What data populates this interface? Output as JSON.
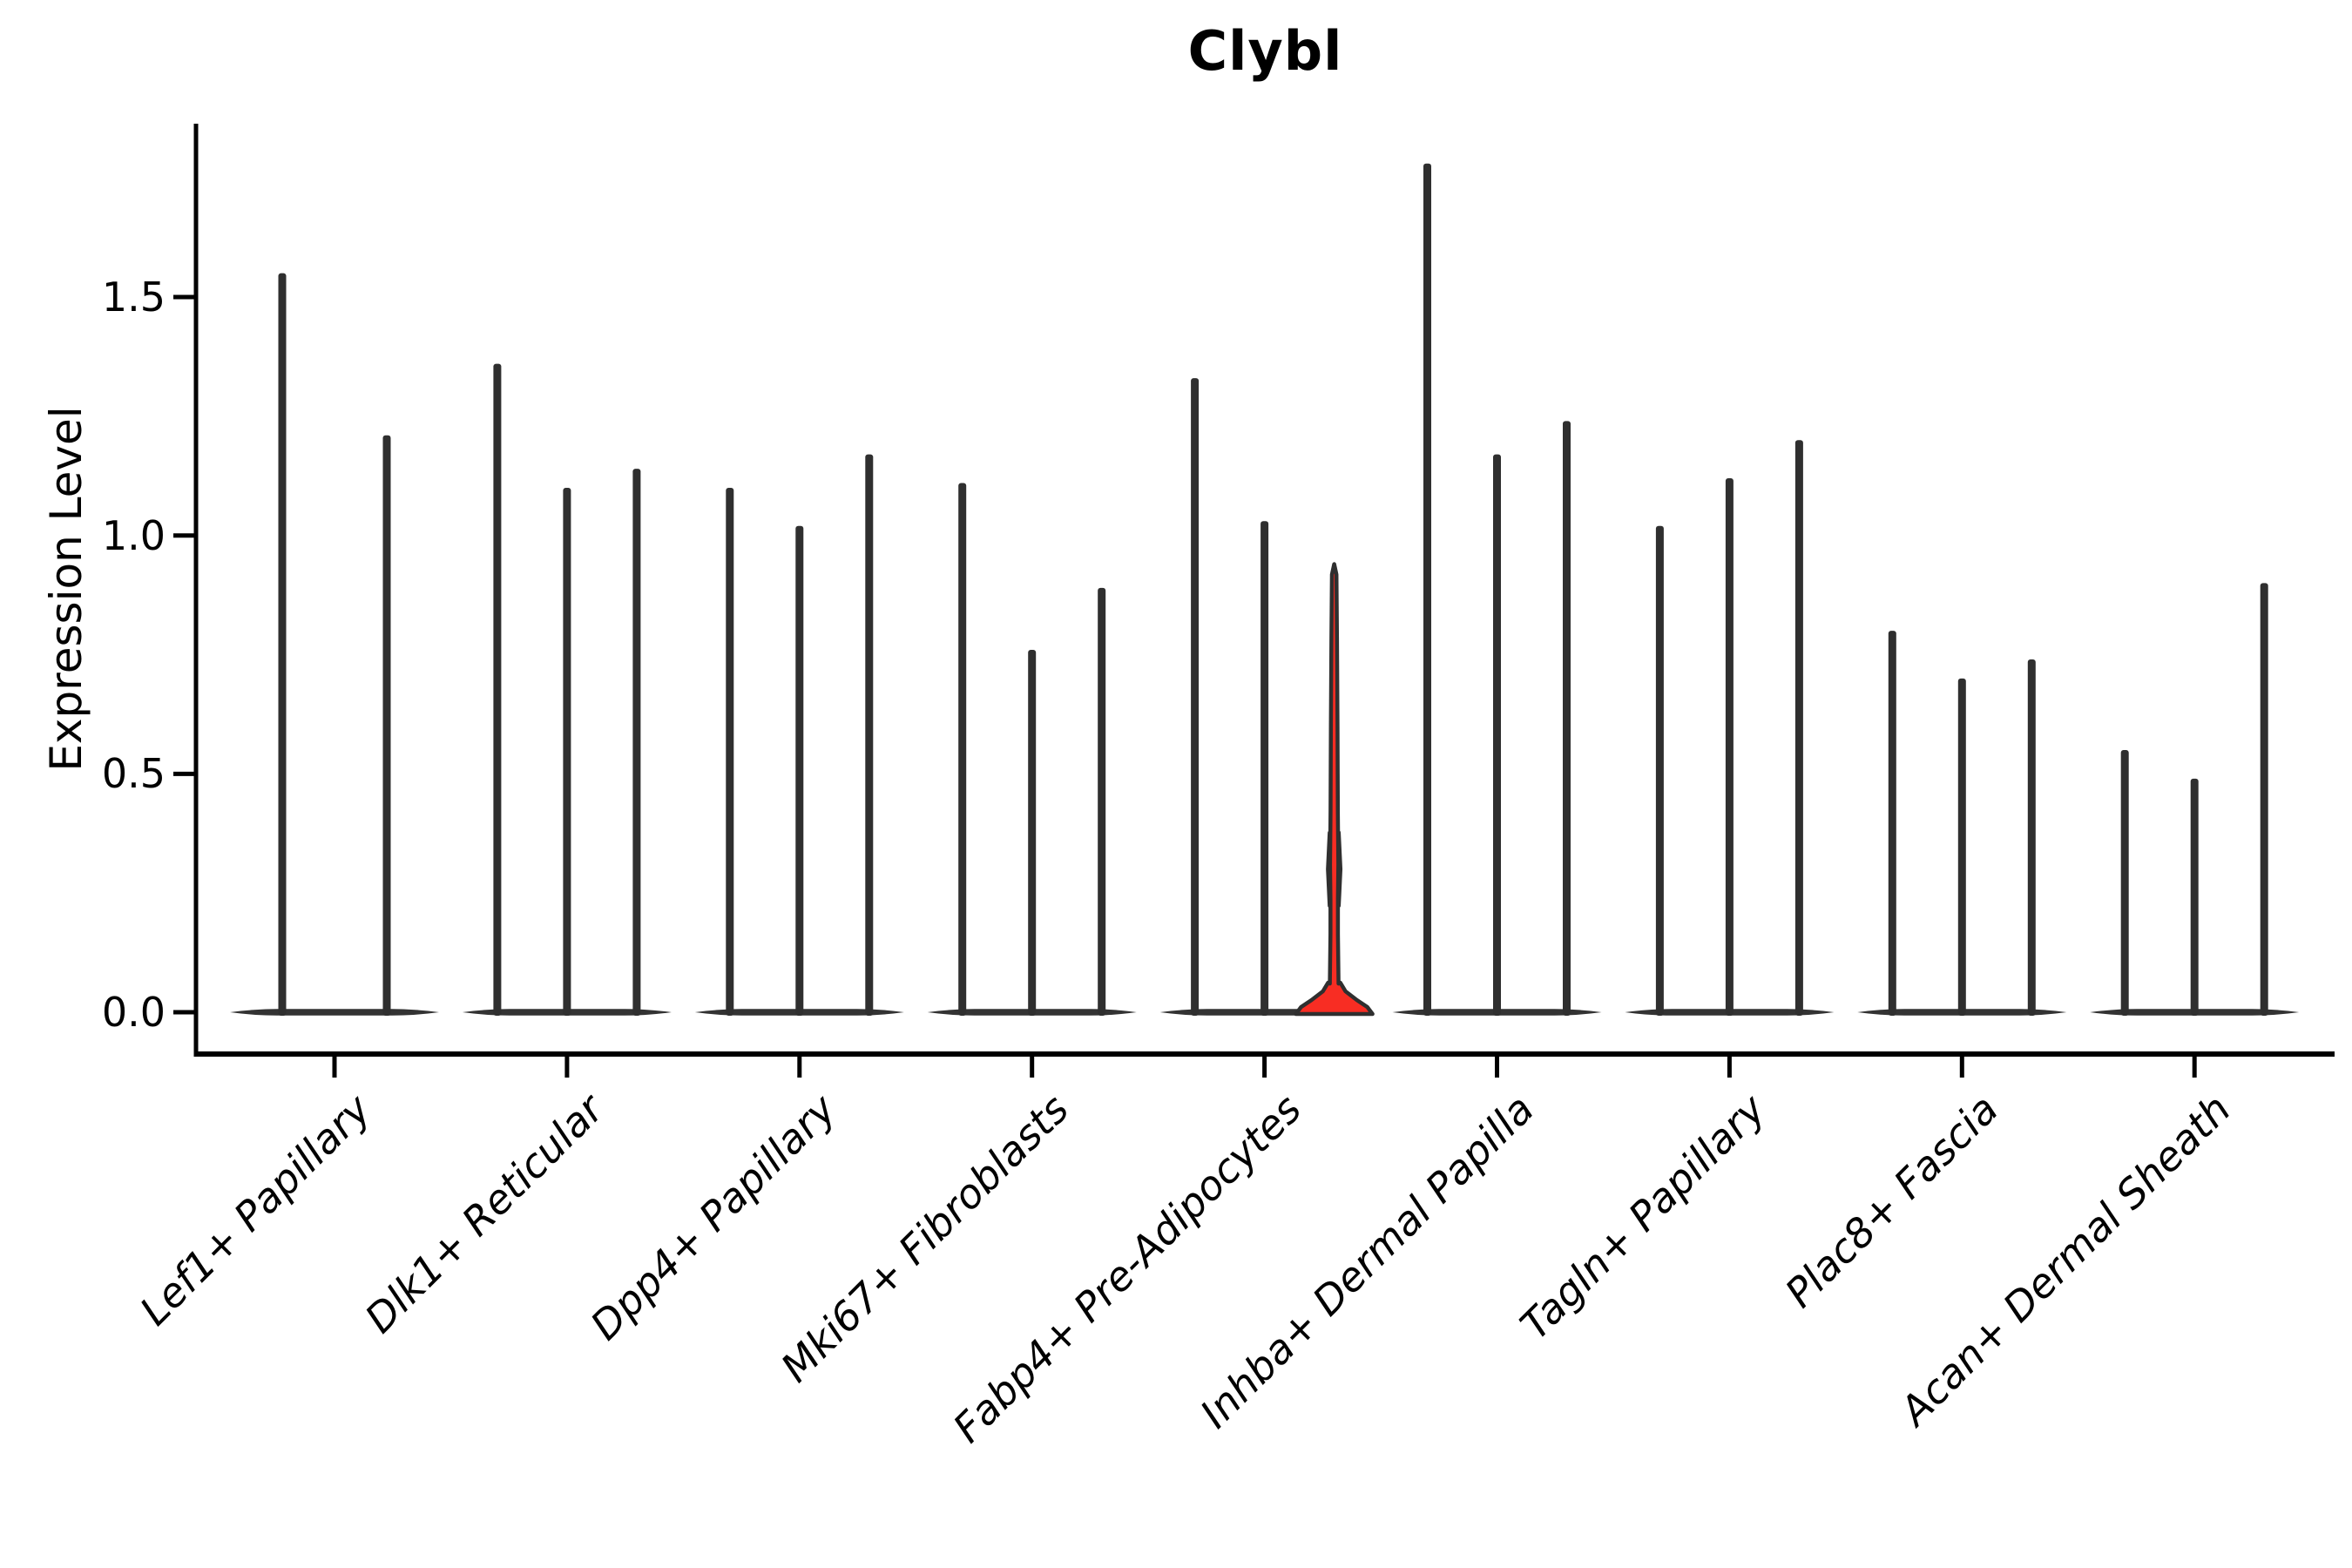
{
  "title": "Clybl",
  "ylabel": "Expression Level",
  "chart_data": {
    "type": "violin",
    "title": "Clybl",
    "xlabel": "",
    "ylabel": "Expression Level",
    "ylim": [
      -0.09,
      1.86
    ],
    "yticks": [
      0.0,
      0.5,
      1.0,
      1.5
    ],
    "ytick_labels": [
      "0.0",
      "0.5",
      "1.0",
      "1.5"
    ],
    "grid": false,
    "legend": "none",
    "x_label_rotation_deg": 45,
    "categories": [
      "Lef1+ Papillary",
      "Dlk1+ Reticular",
      "Dpp4+ Papillary",
      "Mki67+ Fibroblasts",
      "Fabp4+ Pre-Adipocytes",
      "Inhba+ Dermal Papilla",
      "Tagln+ Papillary",
      "Plac8+ Fascia",
      "Acan+ Dermal Sheath"
    ],
    "groups": [
      {
        "category": "Lef1+ Papillary",
        "violin_max": [
          1.55,
          1.21
        ]
      },
      {
        "category": "Dlk1+ Reticular",
        "violin_max": [
          1.36,
          1.1,
          1.14
        ]
      },
      {
        "category": "Dpp4+ Papillary",
        "violin_max": [
          1.1,
          1.02,
          1.17
        ]
      },
      {
        "category": "Mki67+ Fibroblasts",
        "violin_max": [
          1.11,
          0.76,
          0.89
        ]
      },
      {
        "category": "Fabp4+ Pre-Adipocytes",
        "violin_max": [
          1.33,
          1.03,
          0.94
        ],
        "highlight_index": 2,
        "highlight": {
          "max": 0.94,
          "bulge_value": 0.3,
          "base_top_value": 0.06,
          "fill": "#f82d23"
        }
      },
      {
        "category": "Inhba+ Dermal Papilla",
        "violin_max": [
          1.78,
          1.17,
          1.24
        ]
      },
      {
        "category": "Tagln+ Papillary",
        "violin_max": [
          1.02,
          1.12,
          1.2
        ]
      },
      {
        "category": "Plac8+ Fascia",
        "violin_max": [
          0.8,
          0.7,
          0.74
        ]
      },
      {
        "category": "Acan+ Dermal Sheath",
        "violin_max": [
          0.55,
          0.49,
          0.9
        ]
      }
    ],
    "colors": {
      "violin_stroke": "#2f2f2f",
      "baseline": "#333333",
      "highlight_fill": "#f82d23",
      "axis": "#000000",
      "text": "#000000"
    }
  }
}
